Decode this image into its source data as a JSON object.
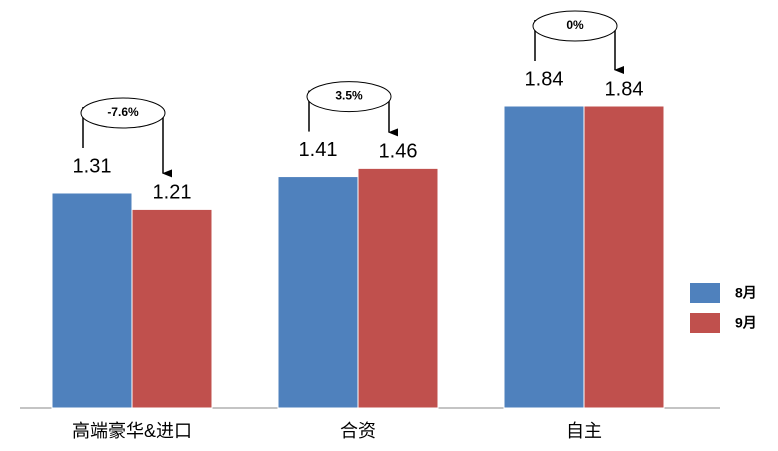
{
  "chart_data": {
    "type": "bar",
    "categories": [
      "高端豪华&进口",
      "合资",
      "自主"
    ],
    "series": [
      {
        "name": "8月",
        "color": "#4f81bd",
        "values": [
          1.31,
          1.41,
          1.84
        ]
      },
      {
        "name": "9月",
        "color": "#c0504d",
        "values": [
          1.21,
          1.46,
          1.84
        ]
      }
    ],
    "annotations": [
      "-7.6%",
      "3.5%",
      "0%"
    ],
    "legend": "right"
  }
}
